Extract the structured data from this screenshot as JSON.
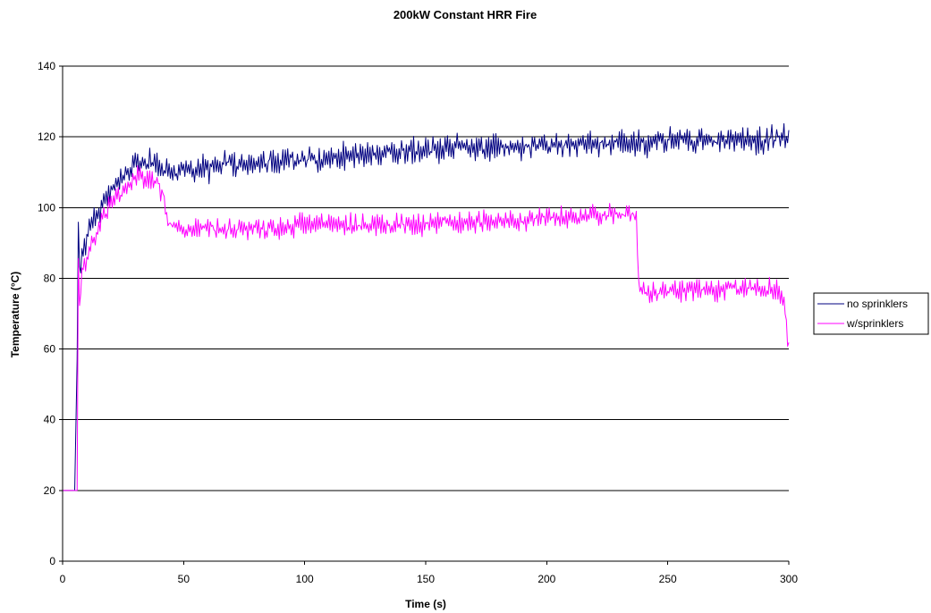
{
  "chart_data": {
    "type": "line",
    "title": "200kW Constant HRR Fire",
    "xlabel": "Time (s)",
    "ylabel": "Temperature (°C)",
    "xlim": [
      0,
      300
    ],
    "ylim": [
      0,
      140
    ],
    "x_ticks": [
      0,
      50,
      100,
      150,
      200,
      250,
      300
    ],
    "y_ticks": [
      0,
      20,
      40,
      60,
      80,
      100,
      120,
      140
    ],
    "grid": "horizontal major gridlines",
    "legend_position": "right",
    "series": [
      {
        "name": "no sprinklers",
        "color": "#000080",
        "x": [
          0,
          5,
          6,
          6.3,
          7,
          8,
          9,
          10,
          12,
          14,
          16,
          18,
          20,
          22,
          25,
          28,
          30,
          33,
          36,
          40,
          42,
          45,
          50,
          55,
          60,
          65,
          68,
          70,
          75,
          80,
          90,
          100,
          110,
          120,
          130,
          140,
          150,
          160,
          170,
          180,
          190,
          200,
          210,
          220,
          230,
          240,
          250,
          255,
          260,
          270,
          280,
          290,
          295,
          300
        ],
        "values": [
          20,
          20,
          57,
          106,
          80,
          87,
          89,
          91,
          95,
          97,
          100,
          103,
          105,
          107,
          109,
          111,
          112,
          112,
          113,
          112,
          110,
          110,
          110,
          111,
          111,
          112,
          113,
          112,
          112,
          113,
          113,
          114,
          114,
          115,
          115,
          116,
          116,
          117,
          117,
          117,
          117,
          118,
          118,
          118,
          118,
          118,
          119,
          119,
          119,
          119,
          119,
          119,
          120,
          120
        ],
        "noise": 3.5
      },
      {
        "name": "w/sprinklers",
        "color": "#ff00ff",
        "x": [
          0,
          6,
          6.3,
          6.8,
          7.5,
          8,
          9,
          10,
          12,
          14,
          16,
          18,
          20,
          22,
          25,
          28,
          30,
          33,
          36,
          39,
          40,
          42,
          43,
          45,
          50,
          60,
          70,
          80,
          90,
          100,
          110,
          120,
          130,
          140,
          150,
          160,
          170,
          180,
          190,
          200,
          210,
          220,
          230,
          236,
          237,
          238,
          240,
          245,
          250,
          260,
          270,
          280,
          290,
          295,
          298,
          299,
          300
        ],
        "values": [
          20,
          20,
          96,
          70,
          78,
          82,
          84,
          86,
          90,
          93,
          96,
          99,
          101,
          103,
          105,
          107,
          108,
          108,
          108,
          107,
          106,
          103,
          97,
          95,
          94,
          94,
          94,
          94,
          94,
          95,
          95,
          95,
          95,
          95,
          95,
          96,
          96,
          96,
          96,
          97,
          97,
          98,
          98,
          98,
          98,
          78,
          77,
          76,
          76,
          77,
          77,
          77,
          77,
          76,
          74,
          66,
          60
        ],
        "noise": 3
      }
    ]
  }
}
